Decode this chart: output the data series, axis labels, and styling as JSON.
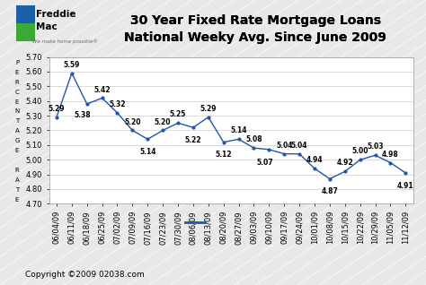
{
  "title_line1": "30 Year Fixed Rate Mortgage Loans",
  "title_line2": "National Weeky Avg. Since June 2009",
  "dates": [
    "06/04/09",
    "06/11/09",
    "06/18/09",
    "06/25/09",
    "07/02/09",
    "07/09/09",
    "07/16/09",
    "07/23/09",
    "07/30/09",
    "08/06/09",
    "08/13/09",
    "08/20/09",
    "08/27/09",
    "09/03/09",
    "09/10/09",
    "09/17/09",
    "09/24/09",
    "10/01/09",
    "10/08/09",
    "10/15/09",
    "10/22/09",
    "10/29/09",
    "11/05/09",
    "11/12/09"
  ],
  "values": [
    5.29,
    5.59,
    5.38,
    5.42,
    5.32,
    5.2,
    5.14,
    5.2,
    5.25,
    5.22,
    5.29,
    5.12,
    5.14,
    5.08,
    5.07,
    5.04,
    5.04,
    4.94,
    4.87,
    4.92,
    5.0,
    5.03,
    4.98,
    4.91
  ],
  "line_color": "#2255aa",
  "marker_color": "#2255aa",
  "background_color": "#e8e8e8",
  "plot_bg_color": "#ffffff",
  "grid_color": "#cccccc",
  "ylim": [
    4.7,
    5.7
  ],
  "yticks": [
    4.7,
    4.8,
    4.9,
    5.0,
    5.1,
    5.2,
    5.3,
    5.4,
    5.5,
    5.6,
    5.7
  ],
  "copyright": "Copyright ©2009 02038.com",
  "label_fontsize": 5.5,
  "title_fontsize": 10,
  "tick_fontsize": 6.0,
  "ylabel_letters": [
    "P",
    "E",
    "R",
    "C",
    "E",
    "N",
    "T",
    "A",
    "G",
    "E",
    " ",
    "R",
    "A",
    "T",
    "E"
  ]
}
